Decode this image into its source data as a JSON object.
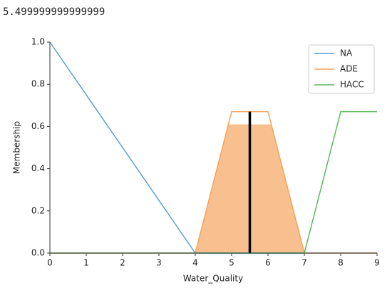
{
  "output_text": "5.499999999999999",
  "chart_data": {
    "type": "line",
    "xlabel": "Water_Quality",
    "ylabel": "Membership",
    "xlim": [
      0,
      9
    ],
    "ylim": [
      0,
      1
    ],
    "xticks": [
      0,
      1,
      2,
      3,
      4,
      5,
      6,
      7,
      8,
      9
    ],
    "yticks": [
      {
        "value": 0,
        "label": "0.0"
      },
      {
        "value": 0.2,
        "label": "0.2"
      },
      {
        "value": 0.4,
        "label": "0.4"
      },
      {
        "value": 0.6,
        "label": "0.6"
      },
      {
        "value": 0.8,
        "label": "0.8"
      },
      {
        "value": 1,
        "label": "1.0"
      }
    ],
    "legend": "upper right",
    "series": [
      {
        "name": "NA",
        "color": "#5a9fd4",
        "x": [
          0,
          4,
          9
        ],
        "values": [
          1,
          0,
          0
        ]
      },
      {
        "name": "ADE",
        "color": "#f5a25d",
        "x": [
          0,
          4,
          5,
          6,
          7,
          9
        ],
        "values": [
          0,
          0,
          0.67,
          0.67,
          0,
          0
        ]
      },
      {
        "name": "HACC",
        "color": "#5cb85c",
        "x": [
          0,
          7,
          8,
          9
        ],
        "values": [
          0,
          0,
          0.67,
          0.67
        ]
      }
    ],
    "fill": {
      "color": "#f9c08f",
      "x": [
        4,
        4.91,
        6.09,
        7
      ],
      "values": [
        0,
        0.61,
        0.61,
        0
      ]
    },
    "defuzz": {
      "color": "#000000",
      "x": [
        5.5,
        5.5
      ],
      "values": [
        0,
        0.67
      ]
    }
  }
}
